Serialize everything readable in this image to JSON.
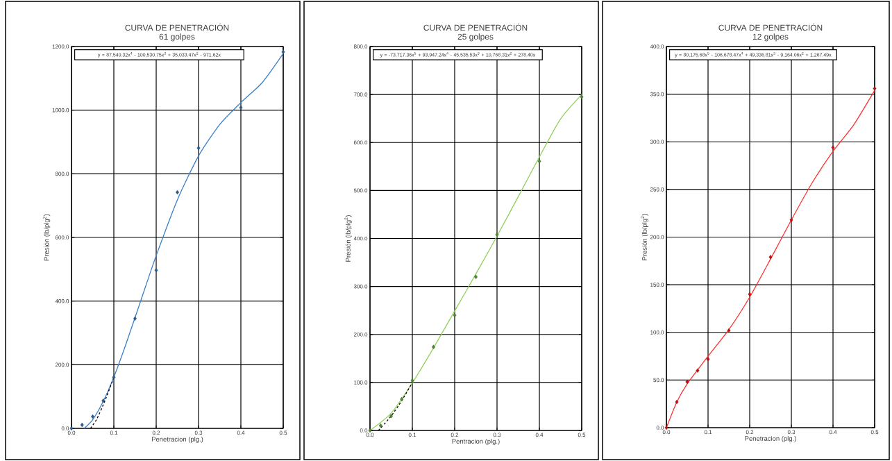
{
  "chart_data": [
    {
      "type": "scatter",
      "title": "CURVA DE PENETRACIÓN",
      "subtitle": "61 golpes",
      "xlabel": "Penetracion (plg.)",
      "ylabel": "Presión (lb/plg$^{2}$)",
      "grid": true,
      "xlim": [
        0,
        0.5
      ],
      "ylim": [
        0,
        1200
      ],
      "xticks": [
        {
          "value": 0,
          "label": "0.0"
        },
        {
          "value": 0.1,
          "label": "0.1"
        },
        {
          "value": 0.2,
          "label": "0.2"
        },
        {
          "value": 0.3,
          "label": "0.3"
        },
        {
          "value": 0.4,
          "label": "0.4"
        },
        {
          "value": 0.5,
          "label": "0.5"
        }
      ],
      "yticks": [
        {
          "value": 0,
          "label": "0.0"
        },
        {
          "value": 200,
          "label": "200.0"
        },
        {
          "value": 400,
          "label": "400.0"
        },
        {
          "value": 600,
          "label": "600.0"
        },
        {
          "value": 800,
          "label": "800.0"
        },
        {
          "value": 1000,
          "label": "1000.0"
        },
        {
          "value": 1200,
          "label": "1200.0"
        }
      ],
      "annotations": [
        "y = 87,540.32x$^{4}$ - 100,530.75x$^{3}$ + 35,033.47x$^{2}$ - 971.62x"
      ],
      "series": [
        {
          "type": "line",
          "color": "#3a7fc8",
          "marker": "none",
          "line_style": "solid",
          "x": [
            0.03,
            0.05,
            0.075,
            0.1,
            0.125,
            0.15,
            0.175,
            0.2,
            0.25,
            0.3,
            0.35,
            0.4,
            0.45,
            0.5
          ],
          "values": [
            0,
            27,
            85,
            161,
            251,
            348,
            446,
            543,
            718,
            856,
            955,
            1024,
            1086,
            1178
          ]
        },
        {
          "type": "line",
          "color": "#000000",
          "marker": "none",
          "line_style": "dashed",
          "x": [
            0.045,
            0.06,
            0.08,
            0.1
          ],
          "values": [
            0,
            30,
            90,
            160
          ]
        },
        {
          "color": "#1f5f9f",
          "marker": "diamond",
          "x": [
            0,
            0.025,
            0.05,
            0.075,
            0.1,
            0.15,
            0.2,
            0.25,
            0.3,
            0.4,
            0.5
          ],
          "values": [
            0,
            11,
            37,
            87,
            161,
            345,
            497,
            742,
            881,
            1008,
            1183
          ]
        }
      ]
    },
    {
      "type": "scatter",
      "title": "CURVA DE PENETRACIÓN",
      "subtitle": "25 golpes",
      "xlabel": "Pentracion (plg.)",
      "ylabel": "Presión (lb/plg$^{2}$)",
      "grid": true,
      "xlim": [
        0,
        0.5
      ],
      "ylim": [
        0,
        800
      ],
      "xticks": [
        {
          "value": 0,
          "label": "0.0"
        },
        {
          "value": 0.1,
          "label": "0.1"
        },
        {
          "value": 0.2,
          "label": "0.2"
        },
        {
          "value": 0.3,
          "label": "0.3"
        },
        {
          "value": 0.4,
          "label": "0.4"
        },
        {
          "value": 0.5,
          "label": "0.5"
        }
      ],
      "yticks": [
        {
          "value": 0,
          "label": "0.0"
        },
        {
          "value": 100,
          "label": "100.0"
        },
        {
          "value": 200,
          "label": "200.0"
        },
        {
          "value": 300,
          "label": "300.0"
        },
        {
          "value": 400,
          "label": "400.0"
        },
        {
          "value": 500,
          "label": "500.0"
        },
        {
          "value": 600,
          "label": "600.0"
        },
        {
          "value": 700,
          "label": "700.0"
        },
        {
          "value": 800,
          "label": "800.0"
        }
      ],
      "annotations": [
        "y = -73,717.36x$^{5}$ + 93,947.24x$^{4}$ - 45,535.53x$^{3}$ + 10,768.31x$^{2}$ + 278.40x"
      ],
      "series": [
        {
          "type": "line",
          "color": "#8fd05a",
          "marker": "none",
          "line_style": "solid",
          "x": [
            0,
            0.05,
            0.1,
            0.15,
            0.2,
            0.25,
            0.3,
            0.35,
            0.4,
            0.45,
            0.5
          ],
          "values": [
            0,
            36,
            99,
            172,
            249,
            326,
            405,
            487,
            570,
            649,
            700
          ]
        },
        {
          "type": "line",
          "color": "#000000",
          "marker": "none",
          "line_style": "dashed",
          "x": [
            0.02,
            0.05,
            0.075,
            0.1
          ],
          "values": [
            0,
            30,
            62,
            100
          ]
        },
        {
          "color": "#4a8c2a",
          "marker": "diamond",
          "x": [
            0,
            0.025,
            0.05,
            0.075,
            0.1,
            0.15,
            0.2,
            0.25,
            0.3,
            0.4,
            0.5
          ],
          "values": [
            0,
            10,
            30,
            65,
            104,
            174,
            240,
            320,
            408,
            561,
            695
          ]
        }
      ]
    },
    {
      "type": "scatter",
      "title": "CURVA DE PENETRACIÓN",
      "subtitle": "12 golpes",
      "xlabel": "Penetracion (plg.)",
      "ylabel": "Presión (lb/plg$^{2}$)",
      "grid": true,
      "xlim": [
        0,
        0.5
      ],
      "ylim": [
        0,
        400
      ],
      "xticks": [
        {
          "value": 0,
          "label": "0.0"
        },
        {
          "value": 0.1,
          "label": "0.1"
        },
        {
          "value": 0.2,
          "label": "0.2"
        },
        {
          "value": 0.3,
          "label": "0.3"
        },
        {
          "value": 0.4,
          "label": "0.4"
        },
        {
          "value": 0.5,
          "label": "0.5"
        }
      ],
      "yticks": [
        {
          "value": 0,
          "label": "0.0"
        },
        {
          "value": 50,
          "label": "50.0"
        },
        {
          "value": 100,
          "label": "100.0"
        },
        {
          "value": 150,
          "label": "150.0"
        },
        {
          "value": 200,
          "label": "200.0"
        },
        {
          "value": 250,
          "label": "250.0"
        },
        {
          "value": 300,
          "label": "300.0"
        },
        {
          "value": 350,
          "label": "350.0"
        },
        {
          "value": 400,
          "label": "400.0"
        }
      ],
      "annotations": [
        "y = 80,175.68x$^{5}$ - 106,678.47x$^{4}$ + 49,336.81x$^{3}$ - 9,164.06x$^{2}$ + 1,267.49x"
      ],
      "series": [
        {
          "type": "line",
          "color": "#ff3030",
          "marker": "none",
          "line_style": "solid",
          "x": [
            0,
            0.025,
            0.05,
            0.1,
            0.15,
            0.2,
            0.25,
            0.3,
            0.35,
            0.4,
            0.45,
            0.5
          ],
          "values": [
            0,
            27,
            46,
            75,
            103,
            137,
            177,
            218,
            257,
            290,
            318,
            354
          ]
        },
        {
          "color": "#e00000",
          "marker": "diamond",
          "x": [
            0,
            0.025,
            0.05,
            0.075,
            0.1,
            0.15,
            0.2,
            0.25,
            0.3,
            0.4,
            0.5
          ],
          "values": [
            0,
            27,
            48,
            60,
            72,
            102,
            140,
            179,
            218,
            294,
            356
          ]
        }
      ]
    }
  ]
}
